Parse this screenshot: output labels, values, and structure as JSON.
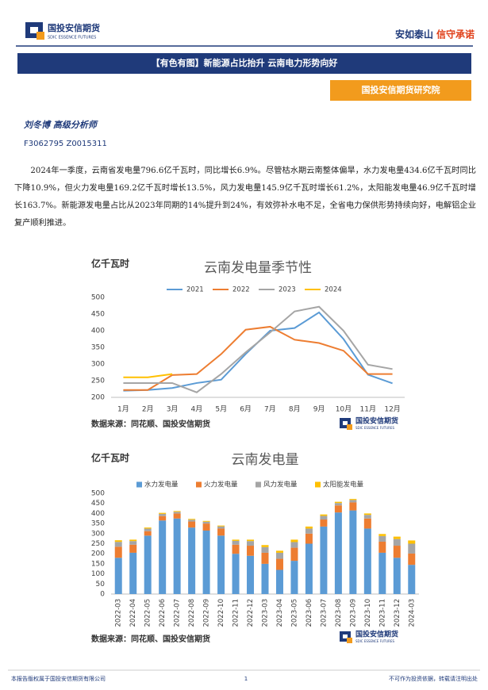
{
  "header": {
    "logo_cn": "国投安信期货",
    "logo_en": "SDIC ESSENCE FUTURES",
    "slogan_left": "安如泰山",
    "slogan_right": "信守承诺"
  },
  "banner": "【有色有图】新能源占比抬升 云南电力形势向好",
  "institute": "国投安信期货研究院",
  "author": {
    "name": "刘冬博  高级分析师",
    "ids": "F3062795  Z0015311"
  },
  "paragraph": "2024年一季度，云南省发电量796.6亿千瓦时，同比增长6.9%。尽管枯水期云南整体偏旱，水力发电量434.6亿千瓦时同比下降10.9%，但火力发电量169.2亿千瓦时增长13.5%，风力发电量145.9亿千瓦时增长61.2%，太阳能发电量46.9亿千瓦时增长163.7%。新能源发电量占比从2023年同期的14%提升到24%，有效弥补水电不足，全省电力保供形势持续向好，电解铝企业复产顺利推进。",
  "chart_data": [
    {
      "type": "line",
      "title": "云南发电量季节性",
      "y_label": "亿千瓦时",
      "source": "数据来源：同花顺、国投安信期货",
      "categories": [
        "1月",
        "2月",
        "3月",
        "4月",
        "5月",
        "6月",
        "7月",
        "8月",
        "9月",
        "10月",
        "11月",
        "12月"
      ],
      "series": [
        {
          "name": "2021",
          "color": "#5b9bd5",
          "values": [
            220,
            222,
            228,
            243,
            253,
            330,
            400,
            408,
            455,
            375,
            268,
            242
          ]
        },
        {
          "name": "2022",
          "color": "#ed7d31",
          "values": [
            222,
            222,
            267,
            270,
            330,
            403,
            412,
            373,
            363,
            340,
            270,
            270
          ]
        },
        {
          "name": "2023",
          "color": "#a5a5a5",
          "values": [
            243,
            243,
            243,
            215,
            270,
            335,
            395,
            458,
            472,
            400,
            298,
            285
          ]
        },
        {
          "name": "2024",
          "color": "#ffc000",
          "values": [
            260,
            260,
            270,
            null,
            null,
            null,
            null,
            null,
            null,
            null,
            null,
            null
          ]
        }
      ],
      "ylim": [
        200,
        500
      ],
      "yticks": [
        200,
        250,
        300,
        350,
        400,
        450,
        500
      ],
      "grid": false,
      "legend": "top"
    },
    {
      "type": "bar",
      "stacked": true,
      "title": "云南发电量",
      "y_label": "亿千瓦时",
      "source": "数据来源：同花顺、国投安信期货",
      "categories": [
        "2022-03",
        "2022-04",
        "2022-05",
        "2022-06",
        "2022-07",
        "2022-08",
        "2022-09",
        "2022-10",
        "2022-11",
        "2022-12",
        "2023-03",
        "2023-04",
        "2023-05",
        "2023-06",
        "2023-07",
        "2023-08",
        "2023-09",
        "2023-10",
        "2023-11",
        "2023-12",
        "2024-03"
      ],
      "series": [
        {
          "name": "水力发电量",
          "color": "#5b9bd5",
          "values": [
            180,
            205,
            290,
            365,
            375,
            330,
            315,
            290,
            200,
            190,
            150,
            120,
            165,
            250,
            335,
            405,
            415,
            325,
            205,
            180,
            145
          ]
        },
        {
          "name": "火力发电量",
          "color": "#ed7d31",
          "values": [
            55,
            40,
            22,
            22,
            25,
            30,
            35,
            35,
            45,
            50,
            55,
            55,
            65,
            50,
            35,
            35,
            40,
            50,
            55,
            60,
            56
          ]
        },
        {
          "name": "风力发电量",
          "color": "#a5a5a5",
          "values": [
            24,
            18,
            13,
            11,
            8,
            9,
            9,
            11,
            19,
            23,
            28,
            30,
            28,
            25,
            18,
            12,
            12,
            18,
            28,
            33,
            49
          ]
        },
        {
          "name": "太阳能发电量",
          "color": "#ffc000",
          "values": [
            8,
            7,
            5,
            5,
            4,
            4,
            4,
            4,
            6,
            7,
            10,
            10,
            12,
            10,
            7,
            6,
            5,
            7,
            10,
            12,
            16
          ]
        }
      ],
      "ylim": [
        0,
        500
      ],
      "yticks": [
        0,
        50,
        100,
        150,
        200,
        250,
        300,
        350,
        400,
        450,
        500
      ],
      "grid": false,
      "legend": "top"
    }
  ],
  "footer": {
    "left": "本报告版权属于国投安信期货有限公司",
    "page": "1",
    "right": "不可作为投资依据，转载请注明出处"
  }
}
